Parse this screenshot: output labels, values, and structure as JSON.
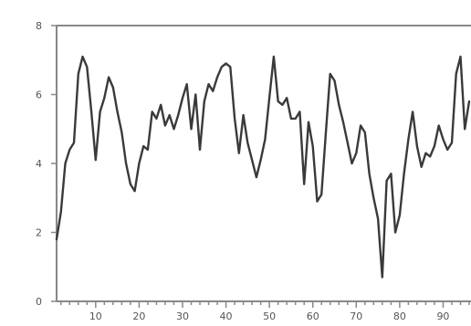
{
  "chart_data": {
    "type": "line",
    "title": "",
    "xlabel": "",
    "ylabel": "",
    "xlim": [
      1,
      96
    ],
    "ylim": [
      0,
      8
    ],
    "x_ticks": [
      10,
      20,
      30,
      40,
      50,
      60,
      70,
      80,
      90
    ],
    "x_tick_labels": [
      "10",
      "20",
      "30",
      "40",
      "50",
      "60",
      "70",
      "80",
      "90"
    ],
    "y_ticks": [
      0,
      2,
      4,
      6,
      8
    ],
    "y_tick_labels": [
      "0",
      "2",
      "4",
      "6",
      "8"
    ],
    "grid": false,
    "colors": {
      "line": "#3a3a3a",
      "axis": "#888888",
      "tick_label": "#555555"
    },
    "series": [
      {
        "x": [
          1,
          2,
          3,
          4,
          5,
          6,
          7,
          8,
          9,
          10,
          11,
          12,
          13,
          14,
          15,
          16,
          17,
          18,
          19,
          20,
          21,
          22,
          23,
          24,
          25,
          26,
          27,
          28,
          29,
          30,
          31,
          32,
          33,
          34,
          35,
          36,
          37,
          38,
          39,
          40,
          41,
          42,
          43,
          44,
          45,
          46,
          47,
          48,
          49,
          50,
          51,
          52,
          53,
          54,
          55,
          56,
          57,
          58,
          59,
          60,
          61,
          62,
          63,
          64,
          65,
          66,
          67,
          68,
          69,
          70,
          71,
          72,
          73,
          74,
          75,
          76,
          77,
          78,
          79,
          80,
          81,
          82,
          83,
          84,
          85,
          86,
          87,
          88,
          89,
          90,
          91,
          92,
          93,
          94,
          95,
          96
        ],
        "y": [
          1.8,
          2.6,
          4.0,
          4.4,
          4.6,
          6.6,
          7.1,
          6.8,
          5.5,
          4.1,
          5.5,
          5.9,
          6.5,
          6.2,
          5.5,
          4.9,
          4.0,
          3.4,
          3.2,
          4.0,
          4.5,
          4.4,
          5.5,
          5.3,
          5.7,
          5.1,
          5.4,
          5.0,
          5.4,
          5.9,
          6.3,
          5.0,
          6.0,
          4.4,
          5.8,
          6.3,
          6.1,
          6.5,
          6.8,
          6.9,
          6.8,
          5.3,
          4.3,
          5.4,
          4.6,
          4.1,
          3.6,
          4.1,
          4.7,
          5.9,
          7.1,
          5.8,
          5.7,
          5.9,
          5.3,
          5.3,
          5.5,
          3.4,
          5.2,
          4.5,
          2.9,
          3.1,
          4.9,
          6.6,
          6.4,
          5.7,
          5.2,
          4.6,
          4.0,
          4.3,
          5.1,
          4.9,
          3.7,
          3.0,
          2.4,
          0.7,
          3.5,
          3.7,
          2.0,
          2.5,
          3.7,
          4.7,
          5.5,
          4.5,
          3.9,
          4.3,
          4.2,
          4.5,
          5.1,
          4.7,
          4.4,
          4.6,
          6.6,
          7.1,
          5.0,
          5.8
        ]
      }
    ]
  }
}
